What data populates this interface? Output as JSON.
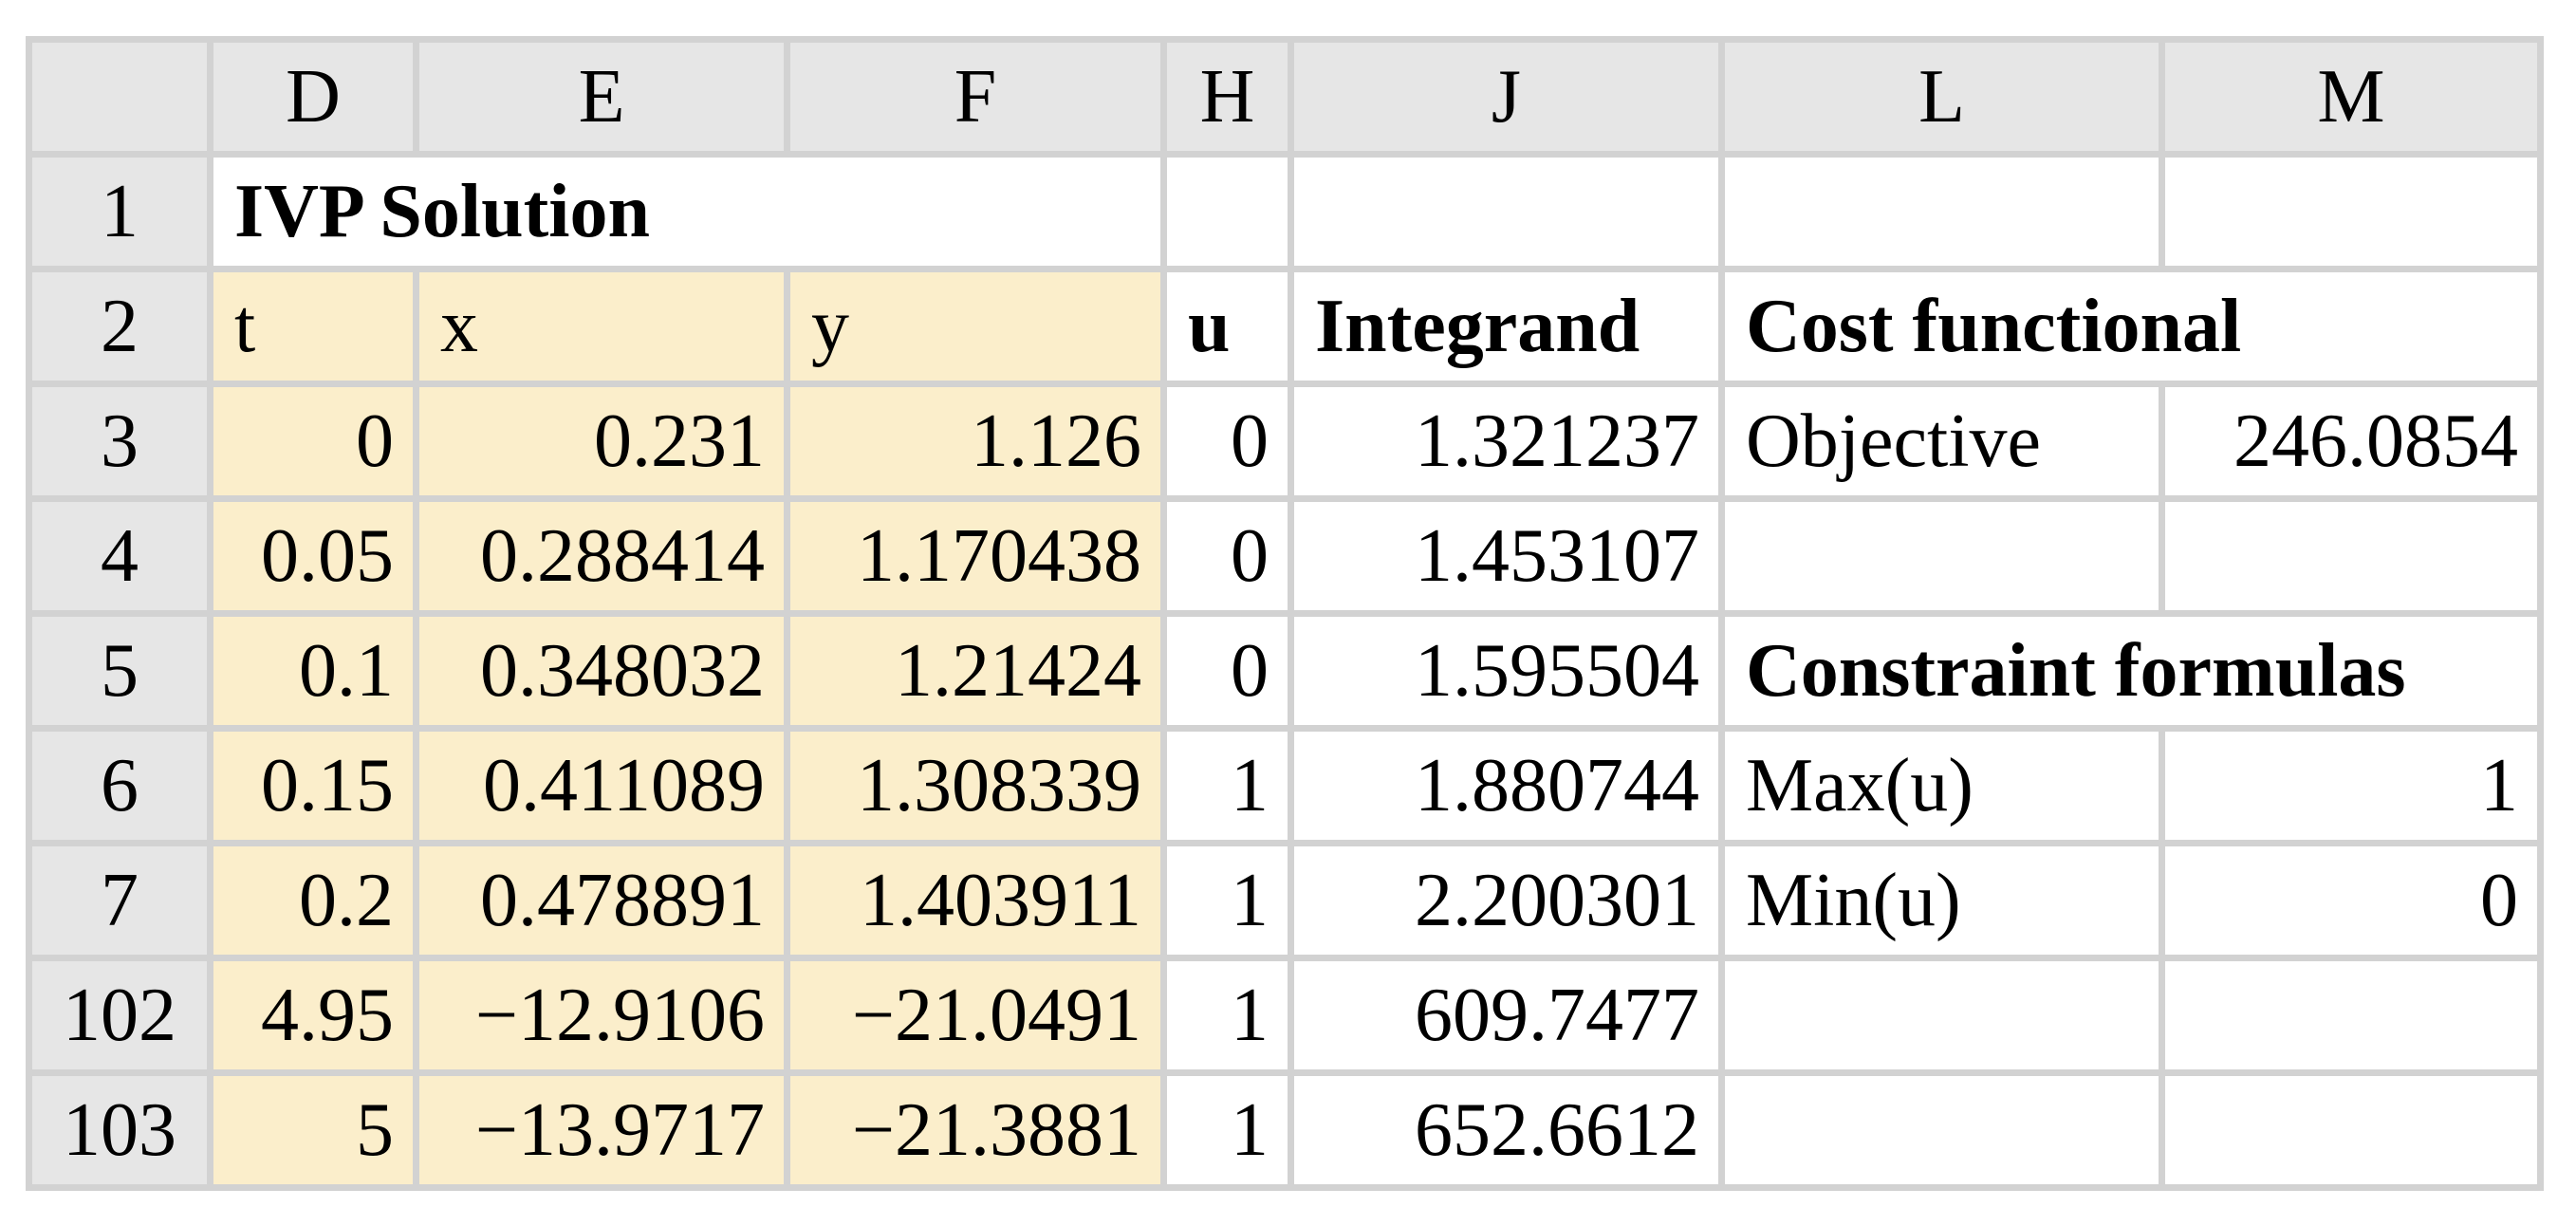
{
  "colors": {
    "highlight_fill": "#FBEECB",
    "header_fill": "#E6E6E6",
    "grid_line": "#D2D2D2",
    "cell_fill": "#FFFFFF",
    "text": "#000000"
  },
  "sheet": {
    "columns": [
      "D",
      "E",
      "F",
      "H",
      "J",
      "L",
      "M"
    ],
    "title": "IVP Solution",
    "rows": [
      {
        "num": "1"
      },
      {
        "num": "2",
        "t": "t",
        "x": "x",
        "y": "y",
        "u": "u",
        "integrand": "Integrand",
        "cost_header": "Cost functional"
      },
      {
        "num": "3",
        "t": "0",
        "x": "0.231",
        "y": "1.126",
        "u": "0",
        "integrand": "1.321237",
        "label": "Objective",
        "value": "246.0854"
      },
      {
        "num": "4",
        "t": "0.05",
        "x": "0.288414",
        "y": "1.170438",
        "u": "0",
        "integrand": "1.453107"
      },
      {
        "num": "5",
        "t": "0.1",
        "x": "0.348032",
        "y": "1.21424",
        "u": "0",
        "integrand": "1.595504",
        "constraint_header": "Constraint formulas"
      },
      {
        "num": "6",
        "t": "0.15",
        "x": "0.411089",
        "y": "1.308339",
        "u": "1",
        "integrand": "1.880744",
        "label": "Max(u)",
        "value": "1"
      },
      {
        "num": "7",
        "t": "0.2",
        "x": "0.478891",
        "y": "1.403911",
        "u": "1",
        "integrand": "2.200301",
        "label": "Min(u)",
        "value": "0"
      },
      {
        "num": "102",
        "t": "4.95",
        "x": "−12.9106",
        "y": "−21.0491",
        "u": "1",
        "integrand": "609.7477"
      },
      {
        "num": "103",
        "t": "5",
        "x": "−13.9717",
        "y": "−21.3881",
        "u": "1",
        "integrand": "652.6612"
      }
    ]
  }
}
